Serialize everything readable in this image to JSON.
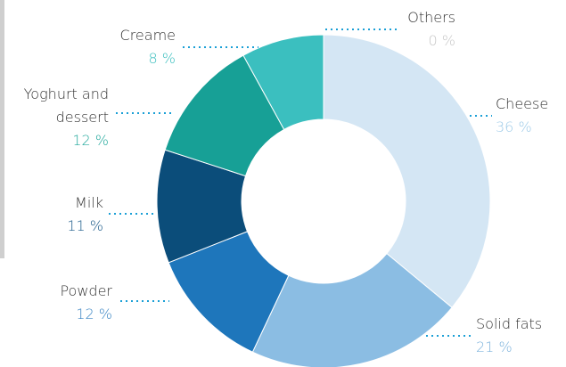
{
  "chart_data": {
    "type": "donut",
    "categories": [
      "Cheese",
      "Solid fats",
      "Powder",
      "Milk",
      "Yoghurt and dessert",
      "Creame",
      "Others"
    ],
    "values": [
      36,
      21,
      12,
      11,
      12,
      8,
      0
    ],
    "value_labels": [
      "36 %",
      "21 %",
      "12 %",
      "11 %",
      "12 %",
      "8 %",
      "0 %"
    ],
    "colors": [
      "#d4e6f4",
      "#8bbde3",
      "#1e76bb",
      "#0b4d7a",
      "#17a096",
      "#3bbfbf",
      "#d0d0d0"
    ],
    "label_colors": [
      "#9fcbe8",
      "#7fb4dd",
      "#3c86c4",
      "#1d5c8a",
      "#22a89c",
      "#3bbfbf",
      "#c8c8c8"
    ]
  }
}
